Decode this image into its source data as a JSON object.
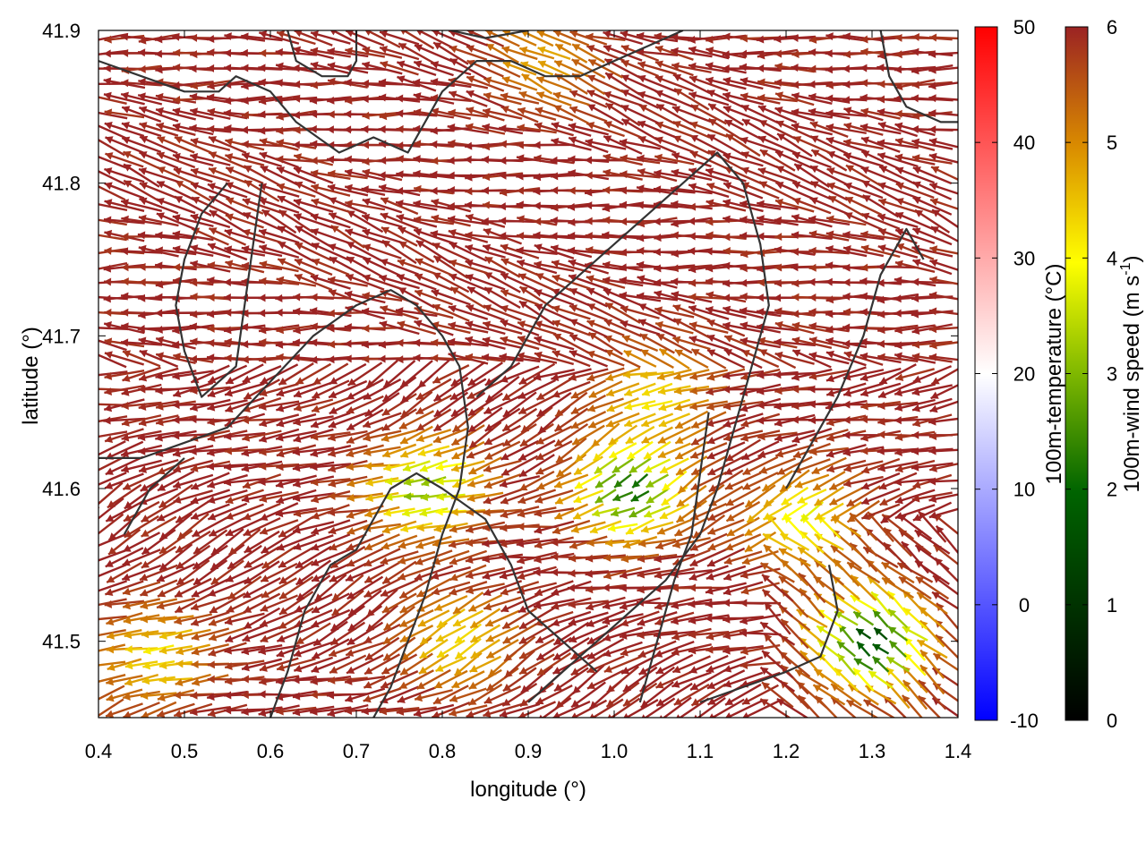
{
  "chart_data": {
    "type": "vector-field",
    "xlabel": "longitude (°)",
    "ylabel": "latitude (°)",
    "xlim": [
      0.4,
      1.4
    ],
    "ylim": [
      41.45,
      41.9
    ],
    "x_ticks": [
      "0.4",
      "0.5",
      "0.6",
      "0.7",
      "0.8",
      "0.9",
      "1.0",
      "1.1",
      "1.2",
      "1.3",
      "1.4"
    ],
    "y_ticks": [
      "41.5",
      "41.6",
      "41.7",
      "41.8",
      "41.9"
    ],
    "grid": false,
    "colorbars": [
      {
        "label": "100m-temperature (°C)",
        "range": [
          -10,
          50
        ],
        "ticks": [
          "-10",
          "0",
          "10",
          "20",
          "30",
          "40",
          "50"
        ],
        "colors": [
          "#0000ff",
          "#ffffff",
          "#ff0000"
        ]
      },
      {
        "label": "100m-wind speed (m s-1)",
        "label_main": "100m-wind speed (m s",
        "label_sup": "-1",
        "label_end": ")",
        "range": [
          0,
          6
        ],
        "ticks": [
          "0",
          "1",
          "2",
          "3",
          "4",
          "5",
          "6"
        ],
        "colors": [
          "#000000",
          "#006400",
          "#7fb800",
          "#ffff00",
          "#d98a00",
          "#9b2323"
        ]
      }
    ],
    "wind_field": {
      "description_free": true,
      "lon_step": 0.02,
      "lat_step": 0.01,
      "dominant_direction": "east-to-west",
      "max_speed": 6,
      "slow_zones": [
        {
          "lon": 1.02,
          "lat": 41.6,
          "speed": 2.0
        },
        {
          "lon": 0.78,
          "lat": 41.6,
          "speed": 3.0
        },
        {
          "lon": 1.3,
          "lat": 41.5,
          "speed": 1.5
        },
        {
          "lon": 1.05,
          "lat": 41.66,
          "speed": 4.2
        },
        {
          "lon": 0.47,
          "lat": 41.49,
          "speed": 4.2
        },
        {
          "lon": 1.22,
          "lat": 41.58,
          "speed": 3.8
        },
        {
          "lon": 0.82,
          "lat": 41.5,
          "speed": 4.3
        },
        {
          "lon": 0.92,
          "lat": 41.88,
          "speed": 4.8
        }
      ]
    },
    "contours": [
      [
        [
          0.4,
          41.88
        ],
        [
          0.45,
          41.87
        ],
        [
          0.5,
          41.86
        ],
        [
          0.54,
          41.86
        ],
        [
          0.56,
          41.87
        ],
        [
          0.6,
          41.86
        ],
        [
          0.63,
          41.84
        ],
        [
          0.68,
          41.82
        ],
        [
          0.72,
          41.83
        ],
        [
          0.76,
          41.82
        ],
        [
          0.8,
          41.86
        ],
        [
          0.84,
          41.88
        ],
        [
          0.88,
          41.88
        ],
        [
          0.92,
          41.87
        ],
        [
          0.96,
          41.87
        ],
        [
          1.0,
          41.88
        ],
        [
          1.04,
          41.89
        ],
        [
          1.08,
          41.9
        ]
      ],
      [
        [
          0.62,
          41.9
        ],
        [
          0.63,
          41.88
        ],
        [
          0.66,
          41.87
        ],
        [
          0.69,
          41.87
        ],
        [
          0.7,
          41.88
        ],
        [
          0.7,
          41.9
        ]
      ],
      [
        [
          0.81,
          41.9
        ],
        [
          0.85,
          41.895
        ],
        [
          0.9,
          41.9
        ]
      ],
      [
        [
          0.55,
          41.8
        ],
        [
          0.52,
          41.78
        ],
        [
          0.5,
          41.75
        ],
        [
          0.49,
          41.72
        ],
        [
          0.5,
          41.69
        ],
        [
          0.52,
          41.66
        ],
        [
          0.56,
          41.68
        ],
        [
          0.57,
          41.72
        ],
        [
          0.58,
          41.76
        ],
        [
          0.59,
          41.8
        ]
      ],
      [
        [
          0.4,
          41.62
        ],
        [
          0.45,
          41.62
        ],
        [
          0.5,
          41.63
        ],
        [
          0.55,
          41.64
        ],
        [
          0.6,
          41.67
        ],
        [
          0.65,
          41.7
        ],
        [
          0.7,
          41.72
        ],
        [
          0.74,
          41.73
        ],
        [
          0.77,
          41.72
        ],
        [
          0.8,
          41.7
        ],
        [
          0.82,
          41.68
        ],
        [
          0.83,
          41.64
        ],
        [
          0.82,
          41.6
        ],
        [
          0.8,
          41.57
        ],
        [
          0.78,
          41.53
        ],
        [
          0.76,
          41.5
        ],
        [
          0.74,
          41.47
        ],
        [
          0.72,
          41.45
        ]
      ],
      [
        [
          0.43,
          41.57
        ],
        [
          0.46,
          41.6
        ],
        [
          0.5,
          41.62
        ]
      ],
      [
        [
          0.6,
          41.45
        ],
        [
          0.62,
          41.48
        ],
        [
          0.64,
          41.52
        ],
        [
          0.67,
          41.55
        ],
        [
          0.7,
          41.56
        ],
        [
          0.74,
          41.6
        ],
        [
          0.77,
          41.61
        ],
        [
          0.8,
          41.6
        ],
        [
          0.85,
          41.58
        ],
        [
          0.88,
          41.55
        ],
        [
          0.9,
          41.52
        ],
        [
          0.94,
          41.5
        ],
        [
          0.98,
          41.48
        ]
      ],
      [
        [
          0.84,
          41.66
        ],
        [
          0.88,
          41.68
        ],
        [
          0.92,
          41.72
        ],
        [
          0.96,
          41.74
        ],
        [
          1.0,
          41.76
        ],
        [
          1.04,
          41.78
        ],
        [
          1.08,
          41.8
        ],
        [
          1.12,
          41.82
        ],
        [
          1.15,
          41.8
        ],
        [
          1.17,
          41.76
        ],
        [
          1.18,
          41.72
        ],
        [
          1.16,
          41.68
        ],
        [
          1.14,
          41.64
        ],
        [
          1.12,
          41.6
        ],
        [
          1.1,
          41.57
        ],
        [
          1.06,
          41.54
        ],
        [
          1.02,
          41.52
        ],
        [
          0.98,
          41.5
        ],
        [
          0.94,
          41.48
        ],
        [
          0.9,
          41.46
        ]
      ],
      [
        [
          1.03,
          41.46
        ],
        [
          1.05,
          41.5
        ],
        [
          1.07,
          41.54
        ],
        [
          1.09,
          41.57
        ],
        [
          1.1,
          41.61
        ],
        [
          1.11,
          41.65
        ]
      ],
      [
        [
          1.1,
          41.46
        ],
        [
          1.15,
          41.47
        ],
        [
          1.2,
          41.48
        ],
        [
          1.24,
          41.49
        ],
        [
          1.26,
          41.52
        ],
        [
          1.25,
          41.55
        ]
      ],
      [
        [
          1.2,
          41.6
        ],
        [
          1.23,
          41.63
        ],
        [
          1.26,
          41.66
        ],
        [
          1.29,
          41.7
        ],
        [
          1.31,
          41.74
        ],
        [
          1.34,
          41.77
        ],
        [
          1.36,
          41.75
        ]
      ],
      [
        [
          1.31,
          41.9
        ],
        [
          1.32,
          41.87
        ],
        [
          1.34,
          41.85
        ],
        [
          1.38,
          41.84
        ],
        [
          1.4,
          41.84
        ]
      ]
    ]
  }
}
